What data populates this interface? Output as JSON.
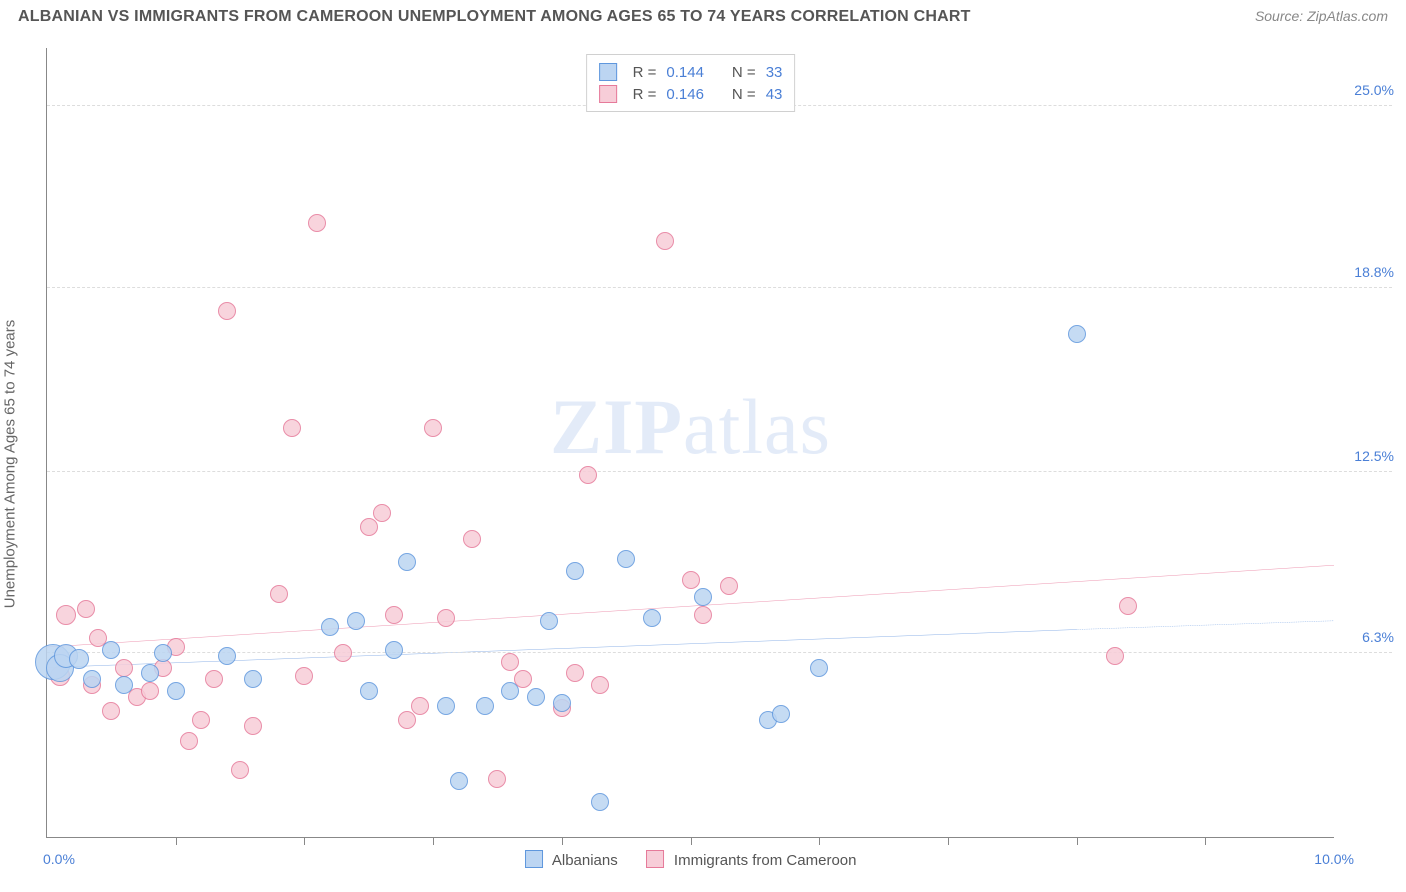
{
  "header": {
    "title": "ALBANIAN VS IMMIGRANTS FROM CAMEROON UNEMPLOYMENT AMONG AGES 65 TO 74 YEARS CORRELATION CHART",
    "source": "Source: ZipAtlas.com"
  },
  "chart": {
    "type": "scatter",
    "y_axis_label": "Unemployment Among Ages 65 to 74 years",
    "watermark": "ZIPatlas",
    "background_color": "#ffffff",
    "grid_color": "#dddddd",
    "axis_color": "#888888",
    "label_color": "#4a7fd6",
    "text_color": "#666666",
    "title_fontsize": 16,
    "axis_label_fontsize": 15,
    "tick_fontsize": 14,
    "x": {
      "min": 0.0,
      "max": 10.0,
      "min_label": "0.0%",
      "max_label": "10.0%",
      "tick_step": 1.0
    },
    "y": {
      "min": 0.0,
      "max": 27.0,
      "gridlines": [
        6.3,
        12.5,
        18.8,
        25.0
      ],
      "gridline_labels": [
        "6.3%",
        "12.5%",
        "18.8%",
        "25.0%"
      ]
    },
    "series": {
      "albanians": {
        "label": "Albanians",
        "marker_fill": "#bcd5f2",
        "marker_stroke": "#5f97dd",
        "line_color": "#3f7ed6",
        "R_label": "R =",
        "R": "0.144",
        "N_label": "N =",
        "N": "33",
        "trend": {
          "x1": 0.0,
          "y1": 5.8,
          "x2_solid": 8.0,
          "y2_solid": 7.1,
          "x2_dash": 10.0,
          "y2_dash": 7.4
        },
        "marker_base_r": 9,
        "points": [
          {
            "x": 0.05,
            "y": 6.0,
            "r": 18
          },
          {
            "x": 0.1,
            "y": 5.8,
            "r": 14
          },
          {
            "x": 0.15,
            "y": 6.2,
            "r": 12
          },
          {
            "x": 0.25,
            "y": 6.1,
            "r": 10
          },
          {
            "x": 0.35,
            "y": 5.4,
            "r": 9
          },
          {
            "x": 0.5,
            "y": 6.4,
            "r": 9
          },
          {
            "x": 0.6,
            "y": 5.2,
            "r": 9
          },
          {
            "x": 0.8,
            "y": 5.6,
            "r": 9
          },
          {
            "x": 0.9,
            "y": 6.3,
            "r": 9
          },
          {
            "x": 1.4,
            "y": 6.2,
            "r": 9
          },
          {
            "x": 1.6,
            "y": 5.4,
            "r": 9
          },
          {
            "x": 2.2,
            "y": 7.2,
            "r": 9
          },
          {
            "x": 2.4,
            "y": 7.4,
            "r": 9
          },
          {
            "x": 2.7,
            "y": 6.4,
            "r": 9
          },
          {
            "x": 2.8,
            "y": 9.4,
            "r": 9
          },
          {
            "x": 3.1,
            "y": 4.5,
            "r": 9
          },
          {
            "x": 3.2,
            "y": 1.9,
            "r": 9
          },
          {
            "x": 3.6,
            "y": 5.0,
            "r": 9
          },
          {
            "x": 3.8,
            "y": 4.8,
            "r": 9
          },
          {
            "x": 3.9,
            "y": 7.4,
            "r": 9
          },
          {
            "x": 4.1,
            "y": 9.1,
            "r": 9
          },
          {
            "x": 4.3,
            "y": 1.2,
            "r": 9
          },
          {
            "x": 4.5,
            "y": 9.5,
            "r": 9
          },
          {
            "x": 4.7,
            "y": 7.5,
            "r": 9
          },
          {
            "x": 5.1,
            "y": 8.2,
            "r": 9
          },
          {
            "x": 5.6,
            "y": 4.0,
            "r": 9
          },
          {
            "x": 5.7,
            "y": 4.2,
            "r": 9
          },
          {
            "x": 6.0,
            "y": 5.8,
            "r": 9
          },
          {
            "x": 8.0,
            "y": 17.2,
            "r": 9
          },
          {
            "x": 1.0,
            "y": 5.0,
            "r": 9
          },
          {
            "x": 2.5,
            "y": 5.0,
            "r": 9
          },
          {
            "x": 3.4,
            "y": 4.5,
            "r": 9
          },
          {
            "x": 4.0,
            "y": 4.6,
            "r": 9
          }
        ]
      },
      "cameroon": {
        "label": "Immigrants from Cameroon",
        "marker_fill": "#f7cdd8",
        "marker_stroke": "#e67a9a",
        "line_color": "#e04f7b",
        "R_label": "R =",
        "R": "0.146",
        "N_label": "N =",
        "N": "43",
        "trend": {
          "x1": 0.0,
          "y1": 6.5,
          "x2_solid": 10.0,
          "y2_solid": 9.3
        },
        "marker_base_r": 9,
        "points": [
          {
            "x": 0.1,
            "y": 5.5,
            "r": 10
          },
          {
            "x": 0.15,
            "y": 7.6,
            "r": 10
          },
          {
            "x": 0.3,
            "y": 7.8,
            "r": 9
          },
          {
            "x": 0.35,
            "y": 5.2,
            "r": 9
          },
          {
            "x": 0.4,
            "y": 6.8,
            "r": 9
          },
          {
            "x": 0.5,
            "y": 4.3,
            "r": 9
          },
          {
            "x": 0.6,
            "y": 5.8,
            "r": 9
          },
          {
            "x": 0.7,
            "y": 4.8,
            "r": 9
          },
          {
            "x": 0.8,
            "y": 5.0,
            "r": 9
          },
          {
            "x": 1.0,
            "y": 6.5,
            "r": 9
          },
          {
            "x": 1.1,
            "y": 3.3,
            "r": 9
          },
          {
            "x": 1.2,
            "y": 4.0,
            "r": 9
          },
          {
            "x": 1.4,
            "y": 18.0,
            "r": 9
          },
          {
            "x": 1.5,
            "y": 2.3,
            "r": 9
          },
          {
            "x": 1.6,
            "y": 3.8,
            "r": 9
          },
          {
            "x": 1.8,
            "y": 8.3,
            "r": 9
          },
          {
            "x": 1.9,
            "y": 14.0,
            "r": 9
          },
          {
            "x": 2.1,
            "y": 21.0,
            "r": 9
          },
          {
            "x": 2.3,
            "y": 6.3,
            "r": 9
          },
          {
            "x": 2.5,
            "y": 10.6,
            "r": 9
          },
          {
            "x": 2.6,
            "y": 11.1,
            "r": 9
          },
          {
            "x": 2.7,
            "y": 7.6,
            "r": 9
          },
          {
            "x": 2.8,
            "y": 4.0,
            "r": 9
          },
          {
            "x": 2.9,
            "y": 4.5,
            "r": 9
          },
          {
            "x": 3.0,
            "y": 14.0,
            "r": 9
          },
          {
            "x": 3.1,
            "y": 7.5,
            "r": 9
          },
          {
            "x": 3.3,
            "y": 10.2,
            "r": 9
          },
          {
            "x": 3.5,
            "y": 2.0,
            "r": 9
          },
          {
            "x": 3.7,
            "y": 5.4,
            "r": 9
          },
          {
            "x": 4.0,
            "y": 4.4,
            "r": 9
          },
          {
            "x": 4.1,
            "y": 5.6,
            "r": 9
          },
          {
            "x": 4.2,
            "y": 12.4,
            "r": 9
          },
          {
            "x": 4.3,
            "y": 5.2,
            "r": 9
          },
          {
            "x": 4.8,
            "y": 20.4,
            "r": 9
          },
          {
            "x": 5.0,
            "y": 8.8,
            "r": 9
          },
          {
            "x": 5.1,
            "y": 7.6,
            "r": 9
          },
          {
            "x": 5.3,
            "y": 8.6,
            "r": 9
          },
          {
            "x": 8.3,
            "y": 6.2,
            "r": 9
          },
          {
            "x": 8.4,
            "y": 7.9,
            "r": 9
          },
          {
            "x": 0.9,
            "y": 5.8,
            "r": 9
          },
          {
            "x": 1.3,
            "y": 5.4,
            "r": 9
          },
          {
            "x": 2.0,
            "y": 5.5,
            "r": 9
          },
          {
            "x": 3.6,
            "y": 6.0,
            "r": 9
          }
        ]
      }
    }
  }
}
